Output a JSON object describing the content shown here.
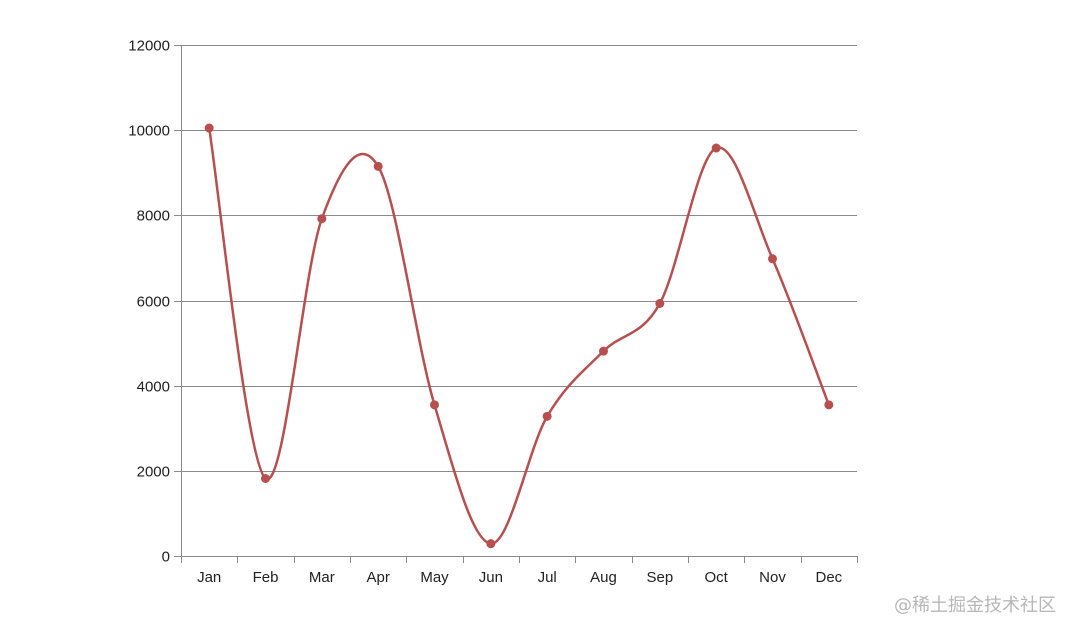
{
  "chart_data": {
    "type": "line",
    "categories": [
      "Jan",
      "Feb",
      "Mar",
      "Apr",
      "May",
      "Jun",
      "Jul",
      "Aug",
      "Sep",
      "Oct",
      "Nov",
      "Dec"
    ],
    "series": [
      {
        "values": [
          10050,
          1820,
          7920,
          9150,
          3550,
          290,
          3280,
          4810,
          5930,
          9580,
          6980,
          3550
        ],
        "color": "#b84f4f"
      }
    ],
    "ylim": [
      0,
      12000
    ],
    "yticks": [
      "0",
      "2000",
      "4000",
      "6000",
      "8000",
      "10000",
      "12000"
    ],
    "grid": true,
    "smooth": true
  },
  "watermark": "@稀土掘金技术社区"
}
